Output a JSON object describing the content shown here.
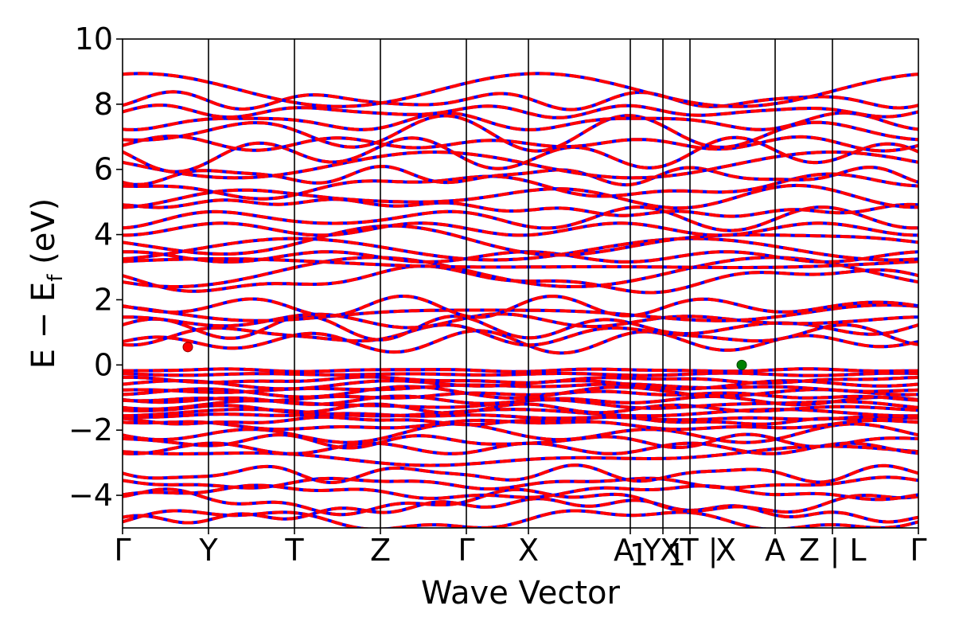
{
  "chart_data": {
    "type": "line",
    "title": "",
    "xlabel": "Wave Vector",
    "ylabel": "E − E_f (eV)",
    "ylabel_main": "E  −  E",
    "ylabel_sub": "f",
    "ylabel_unit": " (eV)",
    "ylim": [
      -5,
      10
    ],
    "yticks": [
      -4,
      -2,
      0,
      2,
      4,
      6,
      8,
      10
    ],
    "ytick_labels": [
      "−4",
      "−2",
      "0",
      "2",
      "4",
      "6",
      "8",
      "10"
    ],
    "kpoints": [
      {
        "k": 0.0,
        "label": "Γ"
      },
      {
        "k": 0.108,
        "label": "Y"
      },
      {
        "k": 0.216,
        "label": "T"
      },
      {
        "k": 0.324,
        "label": "Z"
      },
      {
        "k": 0.432,
        "label": "Γ"
      },
      {
        "k": 0.51,
        "label": "X"
      },
      {
        "k": 0.638,
        "label": "A"
      },
      {
        "k": 0.679,
        "label": "Y"
      },
      {
        "k": 0.713,
        "label": "X"
      },
      {
        "k": 0.82,
        "label": "A"
      },
      {
        "k": 0.892,
        "label": "Z"
      },
      {
        "k": 1.0,
        "label": "Γ"
      }
    ],
    "xtick_text": [
      {
        "k": 0.0,
        "text": "Γ"
      },
      {
        "k": 0.108,
        "text": "Y"
      },
      {
        "k": 0.216,
        "text": "T"
      },
      {
        "k": 0.324,
        "text": "Z"
      },
      {
        "k": 0.432,
        "text": "Γ"
      },
      {
        "k": 0.51,
        "text": "X"
      },
      {
        "k": 0.63,
        "text": "A"
      },
      {
        "k": 0.649,
        "text": "1"
      },
      {
        "k": 0.665,
        "text": "Y"
      },
      {
        "k": 0.688,
        "text": "X"
      },
      {
        "k": 0.696,
        "text": "1"
      },
      {
        "k": 0.712,
        "text": "T"
      },
      {
        "k": 0.742,
        "text": "|"
      },
      {
        "k": 0.758,
        "text": "X"
      },
      {
        "k": 0.82,
        "text": "A"
      },
      {
        "k": 0.863,
        "text": "Z"
      },
      {
        "k": 0.895,
        "text": "|"
      },
      {
        "k": 0.924,
        "text": "L"
      },
      {
        "k": 1.0,
        "text": "Γ"
      }
    ],
    "series": [
      {
        "color": "#0000ff",
        "style": "solid"
      },
      {
        "color": "#ff0000",
        "style": "dashed"
      }
    ],
    "band_count_valence": 24,
    "band_count_conduction": 34,
    "cbm": {
      "k": 0.082,
      "E": 0.55,
      "color": "#ff0000"
    },
    "vbm": {
      "k": 0.778,
      "E": 0.0,
      "color": "#008000"
    },
    "grid": false,
    "legend": "none"
  }
}
